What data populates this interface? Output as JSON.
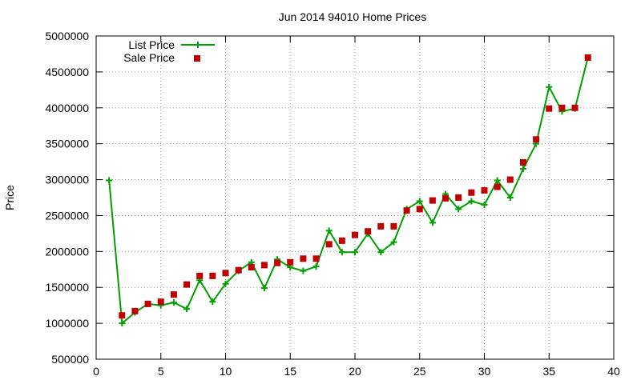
{
  "chart_data": {
    "type": "line",
    "title": "Jun 2014 94010 Home Prices",
    "xlabel": "",
    "ylabel": "Price",
    "xlim": [
      0,
      40
    ],
    "ylim": [
      500000,
      5000000
    ],
    "xticks": [
      0,
      5,
      10,
      15,
      20,
      25,
      30,
      35,
      40
    ],
    "yticks": [
      500000,
      1000000,
      1500000,
      2000000,
      2500000,
      3000000,
      3500000,
      4000000,
      4500000,
      5000000
    ],
    "grid": true,
    "legend": "top-left",
    "series": [
      {
        "name": "List Price",
        "style": "linespoints",
        "marker": "plus",
        "color": "#00a000",
        "x": [
          1,
          2,
          3,
          4,
          5,
          6,
          7,
          8,
          9,
          10,
          11,
          12,
          13,
          14,
          15,
          16,
          17,
          18,
          19,
          20,
          21,
          22,
          23,
          24,
          25,
          26,
          27,
          28,
          29,
          30,
          31,
          32,
          33,
          34,
          35,
          36,
          37,
          38
        ],
        "y": [
          2990000,
          1000000,
          1150000,
          1270000,
          1250000,
          1290000,
          1200000,
          1600000,
          1300000,
          1550000,
          1730000,
          1850000,
          1490000,
          1890000,
          1780000,
          1730000,
          1790000,
          2290000,
          1990000,
          1990000,
          2250000,
          1990000,
          2130000,
          2590000,
          2700000,
          2400000,
          2800000,
          2590000,
          2700000,
          2650000,
          2990000,
          2750000,
          3150000,
          3500000,
          4290000,
          3950000,
          3990000,
          4700000
        ]
      },
      {
        "name": "Sale Price",
        "style": "points",
        "marker": "square",
        "color": "#c00000",
        "x": [
          2,
          3,
          4,
          5,
          6,
          7,
          8,
          9,
          10,
          11,
          12,
          13,
          14,
          15,
          16,
          17,
          18,
          19,
          20,
          21,
          22,
          23,
          24,
          25,
          26,
          27,
          28,
          29,
          30,
          31,
          32,
          33,
          34,
          35,
          36,
          37,
          38
        ],
        "y": [
          1110000,
          1170000,
          1270000,
          1300000,
          1400000,
          1540000,
          1660000,
          1660000,
          1700000,
          1740000,
          1780000,
          1810000,
          1840000,
          1850000,
          1900000,
          1900000,
          2100000,
          2150000,
          2230000,
          2280000,
          2350000,
          2350000,
          2570000,
          2590000,
          2710000,
          2740000,
          2750000,
          2820000,
          2850000,
          2900000,
          3000000,
          3240000,
          3560000,
          3990000,
          4000000,
          4000000,
          4700000
        ]
      }
    ]
  }
}
